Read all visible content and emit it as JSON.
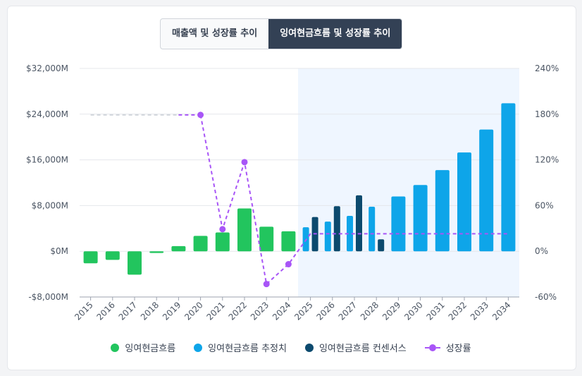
{
  "tabs": [
    {
      "label": "매출액 및 성장률 추이",
      "active": false
    },
    {
      "label": "잉여현금흐름 및 성장률 추이",
      "active": true
    }
  ],
  "colors": {
    "actual": "#22c55e",
    "estimate": "#0ea5e9",
    "consensus": "#0c4a6e",
    "growth": "#a855f7",
    "forecast_bg": "#eff6ff",
    "grid": "#e5e7eb"
  },
  "chart_data": {
    "type": "bar",
    "categories": [
      "2015",
      "2016",
      "2017",
      "2018",
      "2019",
      "2020",
      "2021",
      "2022",
      "2023",
      "2024",
      "2025",
      "2026",
      "2027",
      "2028",
      "2029",
      "2030",
      "2031",
      "2032",
      "2033",
      "2034"
    ],
    "forecast_start": "2025",
    "series": [
      {
        "name": "잉여현금흐름",
        "kind": "actual",
        "values": [
          -2100,
          -1500,
          -4100,
          -300,
          900,
          2700,
          3300,
          7500,
          4300,
          3500,
          null,
          null,
          null,
          null,
          null,
          null,
          null,
          null,
          null,
          null
        ]
      },
      {
        "name": "잉여현금흐름 추정치",
        "kind": "estimate",
        "values": [
          null,
          null,
          null,
          null,
          null,
          null,
          null,
          null,
          null,
          null,
          4200,
          5200,
          6200,
          7800,
          9600,
          11600,
          14200,
          17300,
          21300,
          25900
        ]
      },
      {
        "name": "잉여현금흐름 컨센서스",
        "kind": "consensus",
        "values": [
          null,
          null,
          null,
          null,
          null,
          null,
          null,
          null,
          null,
          null,
          6000,
          7900,
          9800,
          2100,
          null,
          null,
          null,
          null,
          null,
          null
        ]
      },
      {
        "name": "성장률",
        "kind": "line",
        "axis": "right",
        "values": [
          null,
          null,
          null,
          null,
          null,
          179,
          29,
          117,
          -43,
          -17,
          23,
          23,
          23,
          23,
          23,
          23,
          23,
          23,
          23,
          23
        ],
        "baseline_values": [
          179,
          179,
          179,
          179,
          179
        ]
      }
    ],
    "y_left": {
      "min": -8000,
      "max": 32000,
      "ticks": [
        32000,
        24000,
        16000,
        8000,
        0,
        -8000
      ],
      "tick_labels": [
        "$32,000M",
        "$24,000M",
        "$16,000M",
        "$8,000M",
        "$0M",
        "-$8,000M"
      ]
    },
    "y_right": {
      "min": -60,
      "max": 240,
      "ticks": [
        240,
        180,
        120,
        60,
        0,
        -60
      ],
      "tick_labels": [
        "240%",
        "180%",
        "120%",
        "60%",
        "0%",
        "-60%"
      ]
    },
    "grid": true,
    "legend_position": "bottom-center"
  },
  "legend": [
    {
      "label": "잉여현금흐름",
      "kind": "actual"
    },
    {
      "label": "잉여현금흐름 추정치",
      "kind": "estimate"
    },
    {
      "label": "잉여현금흐름 컨센서스",
      "kind": "consensus"
    },
    {
      "label": "성장률",
      "kind": "line"
    }
  ]
}
